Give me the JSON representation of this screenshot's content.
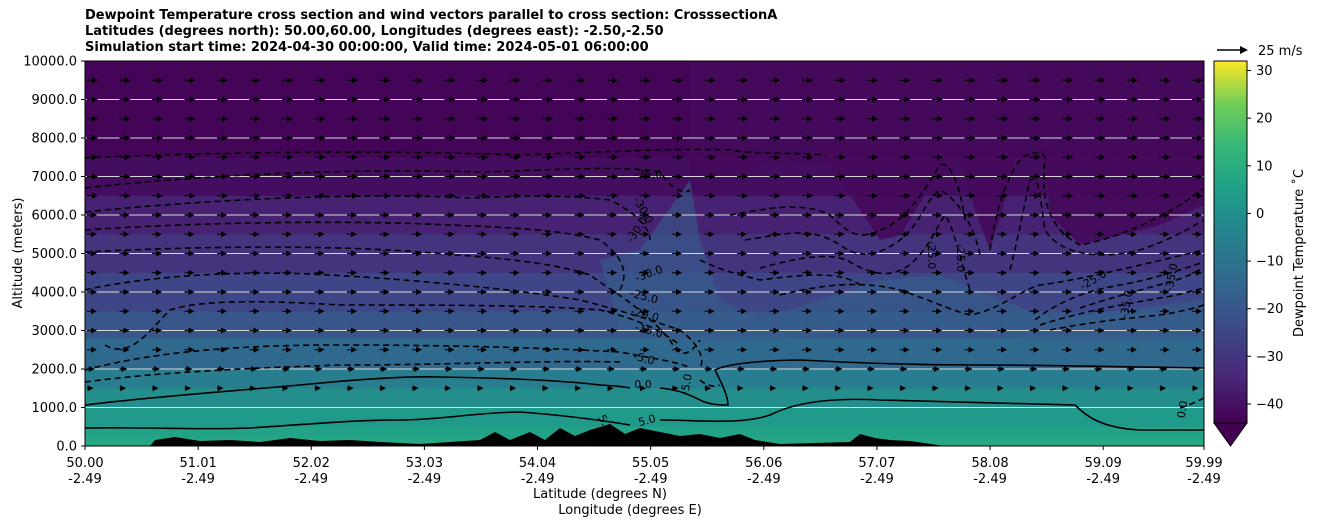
{
  "chart_data": {
    "type": "contour_cross_section",
    "title_lines": [
      "Dewpoint Temperature cross section and wind vectors parallel to cross section: CrosssectionA",
      "Latitudes (degrees north): 50.00,60.00, Longitudes (degrees east): -2.50,-2.50",
      "Simulation start time: 2024-04-30 00:00:00, Valid time: 2024-05-01 06:00:00"
    ],
    "ylabel": "Altitude (meters)",
    "xlabel_lines": [
      "Latitude (degrees N)",
      "Longitude (degrees E)"
    ],
    "ylim": [
      0,
      10000
    ],
    "yticks": [
      "0.0",
      "1000.0",
      "2000.0",
      "3000.0",
      "4000.0",
      "5000.0",
      "6000.0",
      "7000.0",
      "8000.0",
      "9000.0",
      "10000.0"
    ],
    "xticks": [
      {
        "lat": "50.00",
        "lon": "-2.49"
      },
      {
        "lat": "51.01",
        "lon": "-2.49"
      },
      {
        "lat": "52.02",
        "lon": "-2.49"
      },
      {
        "lat": "53.03",
        "lon": "-2.49"
      },
      {
        "lat": "54.04",
        "lon": "-2.49"
      },
      {
        "lat": "55.05",
        "lon": "-2.49"
      },
      {
        "lat": "56.06",
        "lon": "-2.49"
      },
      {
        "lat": "57.07",
        "lon": "-2.49"
      },
      {
        "lat": "58.08",
        "lon": "-2.49"
      },
      {
        "lat": "59.09",
        "lon": "-2.49"
      },
      {
        "lat": "59.99",
        "lon": "-2.49"
      }
    ],
    "grid": "horizontal",
    "colorbar": {
      "label": "Dewpoint Temperature ˚C",
      "ticks": [
        "30",
        "20",
        "10",
        "0",
        "−10",
        "−20",
        "−30",
        "−40"
      ],
      "range": [
        -44,
        32
      ],
      "colormap": "viridis"
    },
    "quiver_key": {
      "label": "25 m/s"
    },
    "contour_labels": [
      "-35.0",
      "-30.0",
      "-30.0",
      "-30.0",
      "-25.0",
      "-20.0",
      "-15.0",
      "-5.0",
      "0.0",
      "-5.0",
      "5.0",
      "5.0",
      "-25.0",
      "-25.0",
      "-25.0",
      "-35.0",
      "-35.0",
      "0.0"
    ],
    "fill_bands": [
      {
        "alt": 10000,
        "value": -43
      },
      {
        "alt": 7500,
        "value": -41
      },
      {
        "alt": 6500,
        "value": -36
      },
      {
        "alt": 5500,
        "value": -31
      },
      {
        "alt": 4500,
        "value": -26
      },
      {
        "alt": 3500,
        "value": -21
      },
      {
        "alt": 2800,
        "value": -15
      },
      {
        "alt": 2000,
        "value": -8
      },
      {
        "alt": 1500,
        "value": -2
      },
      {
        "alt": 1000,
        "value": 2
      },
      {
        "alt": 500,
        "value": 5
      },
      {
        "alt": 200,
        "value": 7
      }
    ]
  }
}
